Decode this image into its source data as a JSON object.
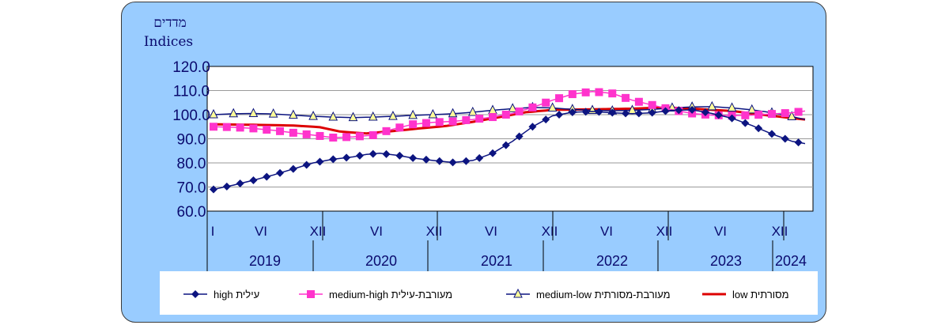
{
  "chart_data": {
    "type": "line",
    "ytitle_he": "מדדים",
    "ytitle_en": "Indices",
    "ylim": [
      60,
      120
    ],
    "yticks": [
      "60.0",
      "70.0",
      "80.0",
      "90.0",
      "100.0",
      "110.0",
      "120.0"
    ],
    "month_labels": [
      "I",
      "VI",
      "XII",
      "VI",
      "XII",
      "VI",
      "XII",
      "VI",
      "XII",
      "VI",
      "XII"
    ],
    "years": [
      "2019",
      "2020",
      "2021",
      "2022",
      "2023",
      "2024"
    ],
    "series": [
      {
        "key": "high",
        "name": "high עילית",
        "color": "#0c1480",
        "marker": "diamond",
        "points": [
          [
            0,
            69
          ],
          [
            3,
            70.8
          ],
          [
            6,
            72.8
          ],
          [
            9,
            75
          ],
          [
            12,
            77.5
          ],
          [
            15,
            80
          ],
          [
            18,
            81.5
          ],
          [
            21,
            82.5
          ],
          [
            23,
            83.5
          ],
          [
            25,
            84
          ],
          [
            28,
            83
          ],
          [
            30,
            82
          ],
          [
            33,
            81
          ],
          [
            36,
            80.2
          ],
          [
            39,
            81
          ],
          [
            42,
            84
          ],
          [
            45,
            89
          ],
          [
            48,
            95
          ],
          [
            51,
            99.5
          ],
          [
            54,
            101
          ],
          [
            57,
            101.3
          ],
          [
            60,
            100.8
          ],
          [
            63,
            100.4
          ],
          [
            66,
            100.8
          ],
          [
            69,
            101.8
          ],
          [
            72,
            102
          ],
          [
            75,
            100.5
          ],
          [
            78,
            98.5
          ],
          [
            81,
            95.5
          ],
          [
            84,
            92
          ],
          [
            87,
            89
          ],
          [
            89,
            88
          ]
        ]
      },
      {
        "key": "medium-high",
        "name": "medium-high מעורבת-עילית",
        "color": "#ff33cc",
        "marker": "square",
        "points": [
          [
            0,
            95
          ],
          [
            3,
            94.8
          ],
          [
            6,
            94.3
          ],
          [
            9,
            93.5
          ],
          [
            12,
            92.5
          ],
          [
            15,
            91.5
          ],
          [
            18,
            90.5
          ],
          [
            21,
            90.8
          ],
          [
            24,
            91.5
          ],
          [
            27,
            94
          ],
          [
            30,
            96
          ],
          [
            33,
            96.8
          ],
          [
            36,
            97.2
          ],
          [
            39,
            98
          ],
          [
            42,
            99
          ],
          [
            45,
            100.5
          ],
          [
            48,
            103
          ],
          [
            51,
            106
          ],
          [
            54,
            108.5
          ],
          [
            57,
            109.6
          ],
          [
            60,
            108.8
          ],
          [
            63,
            106
          ],
          [
            66,
            104
          ],
          [
            69,
            102
          ],
          [
            72,
            100.5
          ],
          [
            75,
            99.8
          ],
          [
            78,
            99.6
          ],
          [
            81,
            99.8
          ],
          [
            84,
            100.3
          ],
          [
            87,
            100.8
          ],
          [
            89,
            101.5
          ]
        ]
      },
      {
        "key": "medium-low",
        "name": "medium-low מעורבת-מסורתית",
        "color": "#0c1480",
        "marker": "triangle",
        "points": [
          [
            0,
            100
          ],
          [
            3,
            100.4
          ],
          [
            6,
            100.5
          ],
          [
            9,
            100.3
          ],
          [
            12,
            99.8
          ],
          [
            15,
            99.3
          ],
          [
            18,
            99
          ],
          [
            21,
            98.8
          ],
          [
            24,
            99
          ],
          [
            27,
            99.3
          ],
          [
            30,
            99.7
          ],
          [
            33,
            100
          ],
          [
            36,
            100.4
          ],
          [
            39,
            101
          ],
          [
            42,
            101.8
          ],
          [
            45,
            102.5
          ],
          [
            48,
            103
          ],
          [
            51,
            102.8
          ],
          [
            54,
            102.2
          ],
          [
            57,
            101.8
          ],
          [
            60,
            101.6
          ],
          [
            63,
            101.8
          ],
          [
            66,
            102.2
          ],
          [
            69,
            102.8
          ],
          [
            72,
            103.2
          ],
          [
            75,
            103.3
          ],
          [
            78,
            102.8
          ],
          [
            81,
            102
          ],
          [
            84,
            100.8
          ],
          [
            87,
            99.2
          ],
          [
            89,
            98
          ]
        ]
      },
      {
        "key": "low",
        "name": "low מסורתית",
        "color": "#dd0000",
        "marker": "none",
        "points": [
          [
            0,
            96
          ],
          [
            6,
            95.8
          ],
          [
            12,
            95.5
          ],
          [
            16,
            94.8
          ],
          [
            19,
            93
          ],
          [
            23,
            92.2
          ],
          [
            27,
            93.2
          ],
          [
            31,
            94.3
          ],
          [
            35,
            95.3
          ],
          [
            39,
            97
          ],
          [
            43,
            99
          ],
          [
            47,
            101
          ],
          [
            51,
            102
          ],
          [
            57,
            102.2
          ],
          [
            63,
            102.5
          ],
          [
            68,
            103
          ],
          [
            72,
            102.5
          ],
          [
            78,
            101.5
          ],
          [
            84,
            99.5
          ],
          [
            89,
            98
          ]
        ]
      }
    ]
  }
}
